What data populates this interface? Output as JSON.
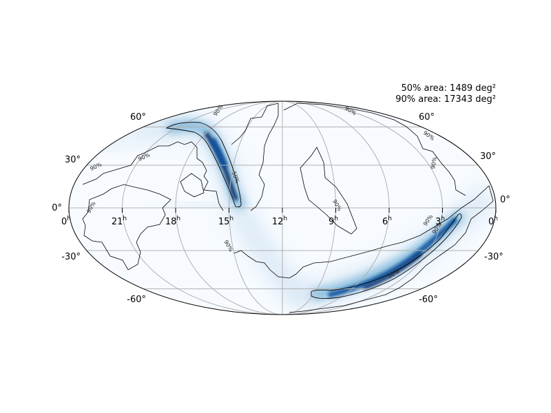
{
  "map": {
    "projection": "mollweide",
    "colormap": "Blues",
    "colors": {
      "background": "#f7fbff",
      "grid": "#b0b0b0",
      "peak": "#08306b",
      "contour": "#000000"
    },
    "area_labels": [
      "50% area: 1489 deg²",
      "90% area: 17343 deg²"
    ],
    "dec_labels_left": [
      "60°",
      "30°",
      "0°",
      "-30°",
      "-60°"
    ],
    "dec_labels_right": [
      "60°",
      "30°",
      "0°",
      "-30°",
      "-60°"
    ],
    "ra_labels": [
      {
        "num": "0",
        "unit": "h"
      },
      {
        "num": "21",
        "unit": "h"
      },
      {
        "num": "18",
        "unit": "h"
      },
      {
        "num": "15",
        "unit": "h"
      },
      {
        "num": "12",
        "unit": "h"
      },
      {
        "num": "9",
        "unit": "h"
      },
      {
        "num": "6",
        "unit": "h"
      },
      {
        "num": "3",
        "unit": "h"
      },
      {
        "num": "0",
        "unit": "h"
      }
    ],
    "contour_labels": {
      "c50": "50%",
      "c90": "90%"
    }
  }
}
